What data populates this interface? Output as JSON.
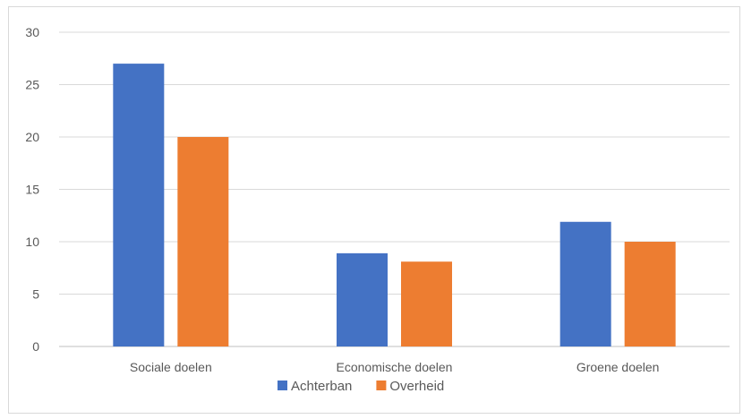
{
  "chart_data": {
    "type": "bar",
    "title": "",
    "xlabel": "",
    "ylabel": "",
    "categories": [
      "Sociale doelen",
      "Economische doelen",
      "Groene doelen"
    ],
    "series": [
      {
        "name": "Achterban",
        "values": [
          27,
          8.9,
          11.9
        ],
        "color": "#4472c4"
      },
      {
        "name": "Overheid",
        "values": [
          20,
          8.1,
          10
        ],
        "color": "#ed7d31"
      }
    ],
    "ylim": [
      0,
      30
    ],
    "yticks": [
      "0",
      "5",
      "10",
      "15",
      "20",
      "25",
      "30"
    ],
    "grid": true,
    "legend": "bottom-center"
  }
}
